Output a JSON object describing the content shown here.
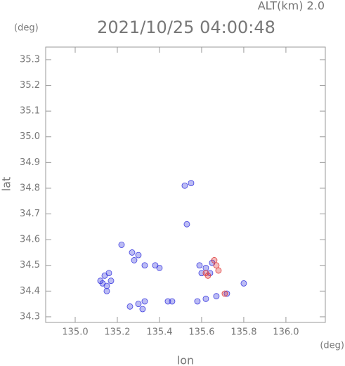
{
  "chart_data": {
    "type": "scatter",
    "title": "2021/10/25 04:00:48",
    "subtitle": "ALT(km) 2.0",
    "x_label": "lon",
    "y_label": "lat",
    "x_unit": "(deg)",
    "y_unit": "(deg)",
    "xlim": [
      134.86,
      136.187
    ],
    "ylim": [
      34.278,
      35.349
    ],
    "xticks": [
      {
        "value": 135,
        "label": "135.0"
      },
      135.2,
      135.4,
      135.6,
      135.8,
      {
        "value": 136,
        "label": "136.0"
      }
    ],
    "yticks": [
      34.3,
      34.4,
      34.5,
      34.6,
      34.7,
      34.8,
      34.9,
      {
        "value": 35,
        "label": "35.0"
      },
      35.1,
      35.2,
      35.3
    ],
    "series": [
      {
        "color": "#4040e0",
        "x": [
          135.14,
          135.16,
          135.13,
          135.15,
          135.17,
          135.12,
          135.15,
          135.22,
          135.27,
          135.3,
          135.28,
          135.33,
          135.38,
          135.4,
          135.3,
          135.33,
          135.32,
          135.26,
          135.44,
          135.46,
          135.52,
          135.55,
          135.53,
          135.58,
          135.62,
          135.67,
          135.72,
          135.8,
          135.59,
          135.62,
          135.65,
          135.64,
          135.6
        ],
        "y": [
          34.46,
          34.47,
          34.43,
          34.42,
          34.44,
          34.44,
          34.4,
          34.58,
          34.55,
          34.54,
          34.52,
          34.5,
          34.5,
          34.49,
          34.35,
          34.36,
          34.33,
          34.34,
          34.36,
          34.36,
          34.81,
          34.82,
          34.66,
          34.36,
          34.37,
          34.38,
          34.39,
          34.43,
          34.5,
          34.49,
          34.51,
          34.47,
          34.47
        ]
      },
      {
        "color": "#e04040",
        "x": [
          135.62,
          135.67,
          135.68,
          135.66,
          135.63,
          135.71
        ],
        "y": [
          34.47,
          34.5,
          34.48,
          34.52,
          34.46,
          34.39
        ]
      }
    ]
  }
}
